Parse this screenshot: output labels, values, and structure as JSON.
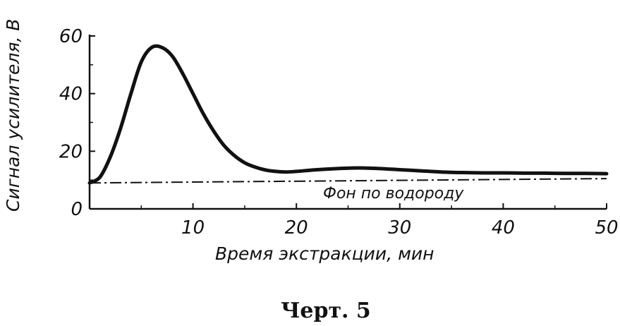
{
  "chart_data": {
    "type": "line",
    "xlabel": "Время экстракции, мин",
    "ylabel": "Сигнал усилителя, В",
    "xlim": [
      0,
      50
    ],
    "ylim": [
      0,
      60
    ],
    "x_ticks": [
      10,
      20,
      30,
      40,
      50
    ],
    "y_ticks": [
      0,
      20,
      40,
      60
    ],
    "grid": false,
    "series": [
      {
        "x": [
          0,
          1,
          2,
          3,
          4,
          5,
          6,
          7,
          8,
          9,
          10,
          11,
          12,
          13,
          14,
          15,
          16,
          17,
          18,
          19,
          20,
          22,
          24,
          26,
          28,
          30,
          32,
          34,
          36,
          38,
          40,
          42,
          44,
          46,
          48,
          50
        ],
        "y": [
          9,
          11,
          18,
          28,
          40,
          51,
          56,
          56,
          53,
          47,
          40,
          33,
          27,
          22,
          18.5,
          16,
          14.5,
          13.5,
          13,
          12.8,
          13,
          13.6,
          14,
          14.2,
          14,
          13.6,
          13.2,
          12.8,
          12.6,
          12.5,
          12.5,
          12.4,
          12.4,
          12.3,
          12.3,
          12.2
        ]
      },
      {
        "name": "Фон по водороду",
        "style": "dash-dot",
        "x": [
          0,
          50
        ],
        "y": [
          9,
          10.5
        ]
      }
    ],
    "annotations": [
      "Фон по водороду"
    ]
  },
  "caption": "Черт. 5"
}
